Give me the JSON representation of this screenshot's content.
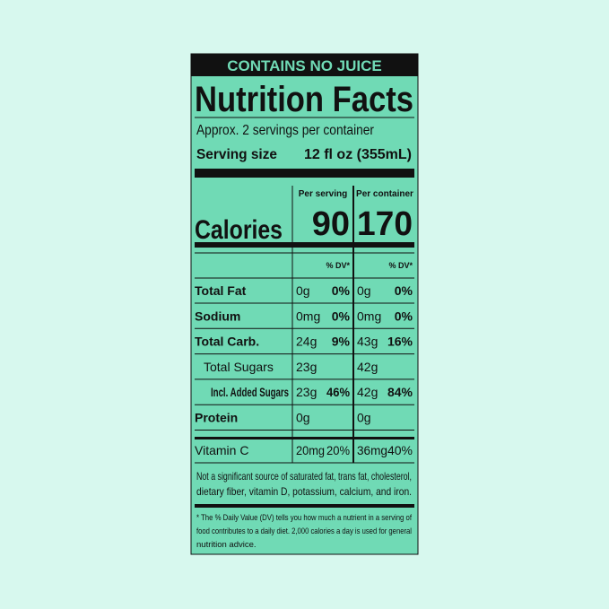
{
  "banner": "CONTAINS NO JUICE",
  "title": "Nutrition Facts",
  "servings": "Approx. 2 servings per container",
  "serving_size": {
    "label": "Serving size",
    "value": "12 fl oz (355mL)"
  },
  "columns": [
    "Per serving",
    "Per container"
  ],
  "calories": {
    "label": "Calories",
    "values": [
      "90",
      "170"
    ]
  },
  "dv_header": [
    "% DV*",
    "% DV*"
  ],
  "nutrients": [
    {
      "name": "Total Fat",
      "bold": true,
      "indent": 0,
      "serving": [
        "0g",
        "0%"
      ],
      "container": [
        "0g",
        "0%"
      ]
    },
    {
      "name": "Sodium",
      "bold": true,
      "indent": 0,
      "serving": [
        "0mg",
        "0%"
      ],
      "container": [
        "0mg",
        "0%"
      ]
    },
    {
      "name": "Total Carb.",
      "bold": true,
      "indent": 0,
      "serving": [
        "24g",
        "9%"
      ],
      "container": [
        "43g",
        "16%"
      ]
    },
    {
      "name": "Total Sugars",
      "bold": false,
      "indent": 1,
      "serving": [
        "23g"
      ],
      "container": [
        "42g"
      ]
    },
    {
      "name": "Incl. Added Sugars",
      "bold": true,
      "indent": 2,
      "serving": [
        "23g",
        "46%"
      ],
      "container": [
        "42g",
        "84%"
      ]
    },
    {
      "name": "Protein",
      "bold": true,
      "indent": 0,
      "serving": [
        "0g"
      ],
      "container": [
        "0g"
      ]
    }
  ],
  "vitamins": [
    {
      "name": "Vitamin C",
      "bold": false,
      "indent": 0,
      "serving": [
        "20mg",
        "20%"
      ],
      "container": [
        "36mg",
        "40%"
      ]
    }
  ],
  "footnote_1": [
    "Not a significant source of saturated fat, trans fat, cholesterol,",
    "dietary fiber, vitamin D, potassium, calcium, and iron."
  ],
  "footnote_2": [
    "* The % Daily Value (DV) tells you how much a nutrient in a serving of",
    "food contributes to a daily diet. 2,000 calories a day is used for general",
    "nutrition advice."
  ]
}
